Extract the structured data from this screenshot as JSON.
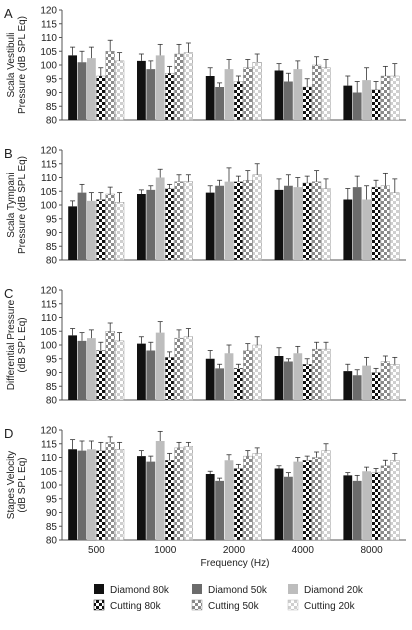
{
  "figure": {
    "xlabel": "Frequency (Hz)",
    "legend": [
      "Diamond 80k",
      "Diamond 50k",
      "Diamond 20k",
      "Cutting 80k",
      "Cutting 50k",
      "Cutting 20k"
    ]
  },
  "colors": {
    "diamond80": "#111111",
    "diamond50": "#6b6b6b",
    "diamond20": "#bdbdbd",
    "axis": "#555555",
    "error": "#333333"
  },
  "chart_data": [
    {
      "type": "bar",
      "panel": "A",
      "ylabel_lines": [
        "Scala Vestibuli",
        "Pressure (dB SPL Eq)"
      ],
      "ylim": [
        80,
        120
      ],
      "yticks": [
        80,
        85,
        90,
        95,
        100,
        105,
        110,
        115,
        120
      ],
      "categories": [
        "500",
        "1000",
        "2000",
        "4000",
        "8000"
      ],
      "series": [
        {
          "name": "Diamond 80k",
          "values": [
            103.5,
            101.5,
            96,
            98,
            92.5
          ],
          "errors": [
            3,
            2.5,
            3,
            2.5,
            3.5
          ]
        },
        {
          "name": "Diamond 50k",
          "values": [
            101,
            98.5,
            92,
            94,
            90
          ],
          "errors": [
            4,
            3,
            1.5,
            3,
            4
          ]
        },
        {
          "name": "Diamond 20k",
          "values": [
            102.5,
            103.5,
            98.5,
            98.5,
            94.5
          ],
          "errors": [
            4,
            4,
            3.5,
            3,
            4.5
          ]
        },
        {
          "name": "Cutting 80k",
          "values": [
            96,
            97,
            94,
            92,
            91
          ],
          "errors": [
            3,
            2.5,
            2,
            3,
            3
          ]
        },
        {
          "name": "Cutting 50k",
          "values": [
            105,
            104,
            99,
            100,
            96
          ],
          "errors": [
            4,
            3.5,
            3,
            3,
            3.5
          ]
        },
        {
          "name": "Cutting 20k",
          "values": [
            101.5,
            104.5,
            101,
            99,
            96
          ],
          "errors": [
            3,
            3.5,
            3,
            3,
            4.5
          ]
        }
      ]
    },
    {
      "type": "bar",
      "panel": "B",
      "ylabel_lines": [
        "Scala Tympani",
        "Pressure (dB SPL Eq)"
      ],
      "ylim": [
        80,
        120
      ],
      "yticks": [
        80,
        85,
        90,
        95,
        100,
        105,
        110,
        115,
        120
      ],
      "categories": [
        "500",
        "1000",
        "2000",
        "4000",
        "8000"
      ],
      "series": [
        {
          "name": "Diamond 80k",
          "values": [
            99.5,
            104,
            104.5,
            105.5,
            102
          ],
          "errors": [
            2,
            1.5,
            2.5,
            4,
            4
          ]
        },
        {
          "name": "Diamond 50k",
          "values": [
            104.5,
            105.5,
            107,
            107,
            106.5
          ],
          "errors": [
            3,
            1.5,
            2,
            4,
            4
          ]
        },
        {
          "name": "Diamond 20k",
          "values": [
            101.5,
            110,
            108.5,
            106.5,
            102
          ],
          "errors": [
            3,
            3,
            5,
            3.5,
            5
          ]
        },
        {
          "name": "Cutting 80k",
          "values": [
            102,
            106,
            108.5,
            108,
            106.5
          ],
          "errors": [
            2.5,
            1.5,
            2,
            2.5,
            2.5
          ]
        },
        {
          "name": "Cutting 50k",
          "values": [
            104,
            108.5,
            109,
            108.5,
            107
          ],
          "errors": [
            2.5,
            2.5,
            3.5,
            4,
            4.5
          ]
        },
        {
          "name": "Cutting 20k",
          "values": [
            101,
            108.5,
            111,
            106,
            104.5
          ],
          "errors": [
            3.5,
            2.5,
            4,
            3.5,
            5
          ]
        }
      ]
    },
    {
      "type": "bar",
      "panel": "C",
      "ylabel_lines": [
        "Differential Pressure",
        "(dB SPL Eq)"
      ],
      "ylim": [
        80,
        120
      ],
      "yticks": [
        80,
        85,
        90,
        95,
        100,
        105,
        110,
        115,
        120
      ],
      "categories": [
        "500",
        "1000",
        "2000",
        "4000",
        "8000"
      ],
      "series": [
        {
          "name": "Diamond 80k",
          "values": [
            103.5,
            100.5,
            95,
            96,
            90.5
          ],
          "errors": [
            2.5,
            2.5,
            3,
            3,
            2.5
          ]
        },
        {
          "name": "Diamond 50k",
          "values": [
            101.5,
            98,
            91.5,
            94,
            89
          ],
          "errors": [
            3,
            3,
            1.5,
            1,
            2
          ]
        },
        {
          "name": "Diamond 20k",
          "values": [
            102.5,
            104.5,
            97,
            97,
            92.5
          ],
          "errors": [
            3,
            4,
            3,
            2.5,
            3
          ]
        },
        {
          "name": "Cutting 80k",
          "values": [
            98,
            95.5,
            91.5,
            93,
            90
          ],
          "errors": [
            3,
            2,
            1.5,
            2,
            1.5
          ]
        },
        {
          "name": "Cutting 50k",
          "values": [
            105,
            102.5,
            98,
            98.5,
            94
          ],
          "errors": [
            3,
            3,
            2.5,
            2.5,
            2
          ]
        },
        {
          "name": "Cutting 20k",
          "values": [
            101.5,
            103,
            100,
            98.5,
            93
          ],
          "errors": [
            3,
            3,
            3,
            2.5,
            2.5
          ]
        }
      ]
    },
    {
      "type": "bar",
      "panel": "D",
      "ylabel_lines": [
        "Stapes Velocity",
        "(dB SPL Eq)"
      ],
      "ylim": [
        80,
        120
      ],
      "yticks": [
        80,
        85,
        90,
        95,
        100,
        105,
        110,
        115,
        120
      ],
      "categories": [
        "500",
        "1000",
        "2000",
        "4000",
        "8000"
      ],
      "series": [
        {
          "name": "Diamond 80k",
          "values": [
            113,
            110.5,
            104,
            106,
            103.5
          ],
          "errors": [
            3.5,
            2,
            1,
            1,
            1
          ]
        },
        {
          "name": "Diamond 50k",
          "values": [
            112.5,
            108.5,
            101.5,
            103,
            101.5
          ],
          "errors": [
            3.5,
            2,
            1,
            1.5,
            2
          ]
        },
        {
          "name": "Diamond 20k",
          "values": [
            113,
            116,
            109,
            108.5,
            105
          ],
          "errors": [
            3,
            3.5,
            2,
            1.5,
            1.5
          ]
        },
        {
          "name": "Cutting 80k",
          "values": [
            112.5,
            109,
            106,
            109,
            104.5
          ],
          "errors": [
            3,
            2.5,
            1.5,
            1.5,
            1.5
          ]
        },
        {
          "name": "Cutting 50k",
          "values": [
            115.5,
            113.5,
            110.5,
            110,
            107
          ],
          "errors": [
            2,
            2,
            2,
            2,
            2
          ]
        },
        {
          "name": "Cutting 20k",
          "values": [
            113,
            114,
            111.5,
            112.5,
            109
          ],
          "errors": [
            2.5,
            1.5,
            2,
            2.5,
            2.5
          ]
        }
      ]
    }
  ]
}
